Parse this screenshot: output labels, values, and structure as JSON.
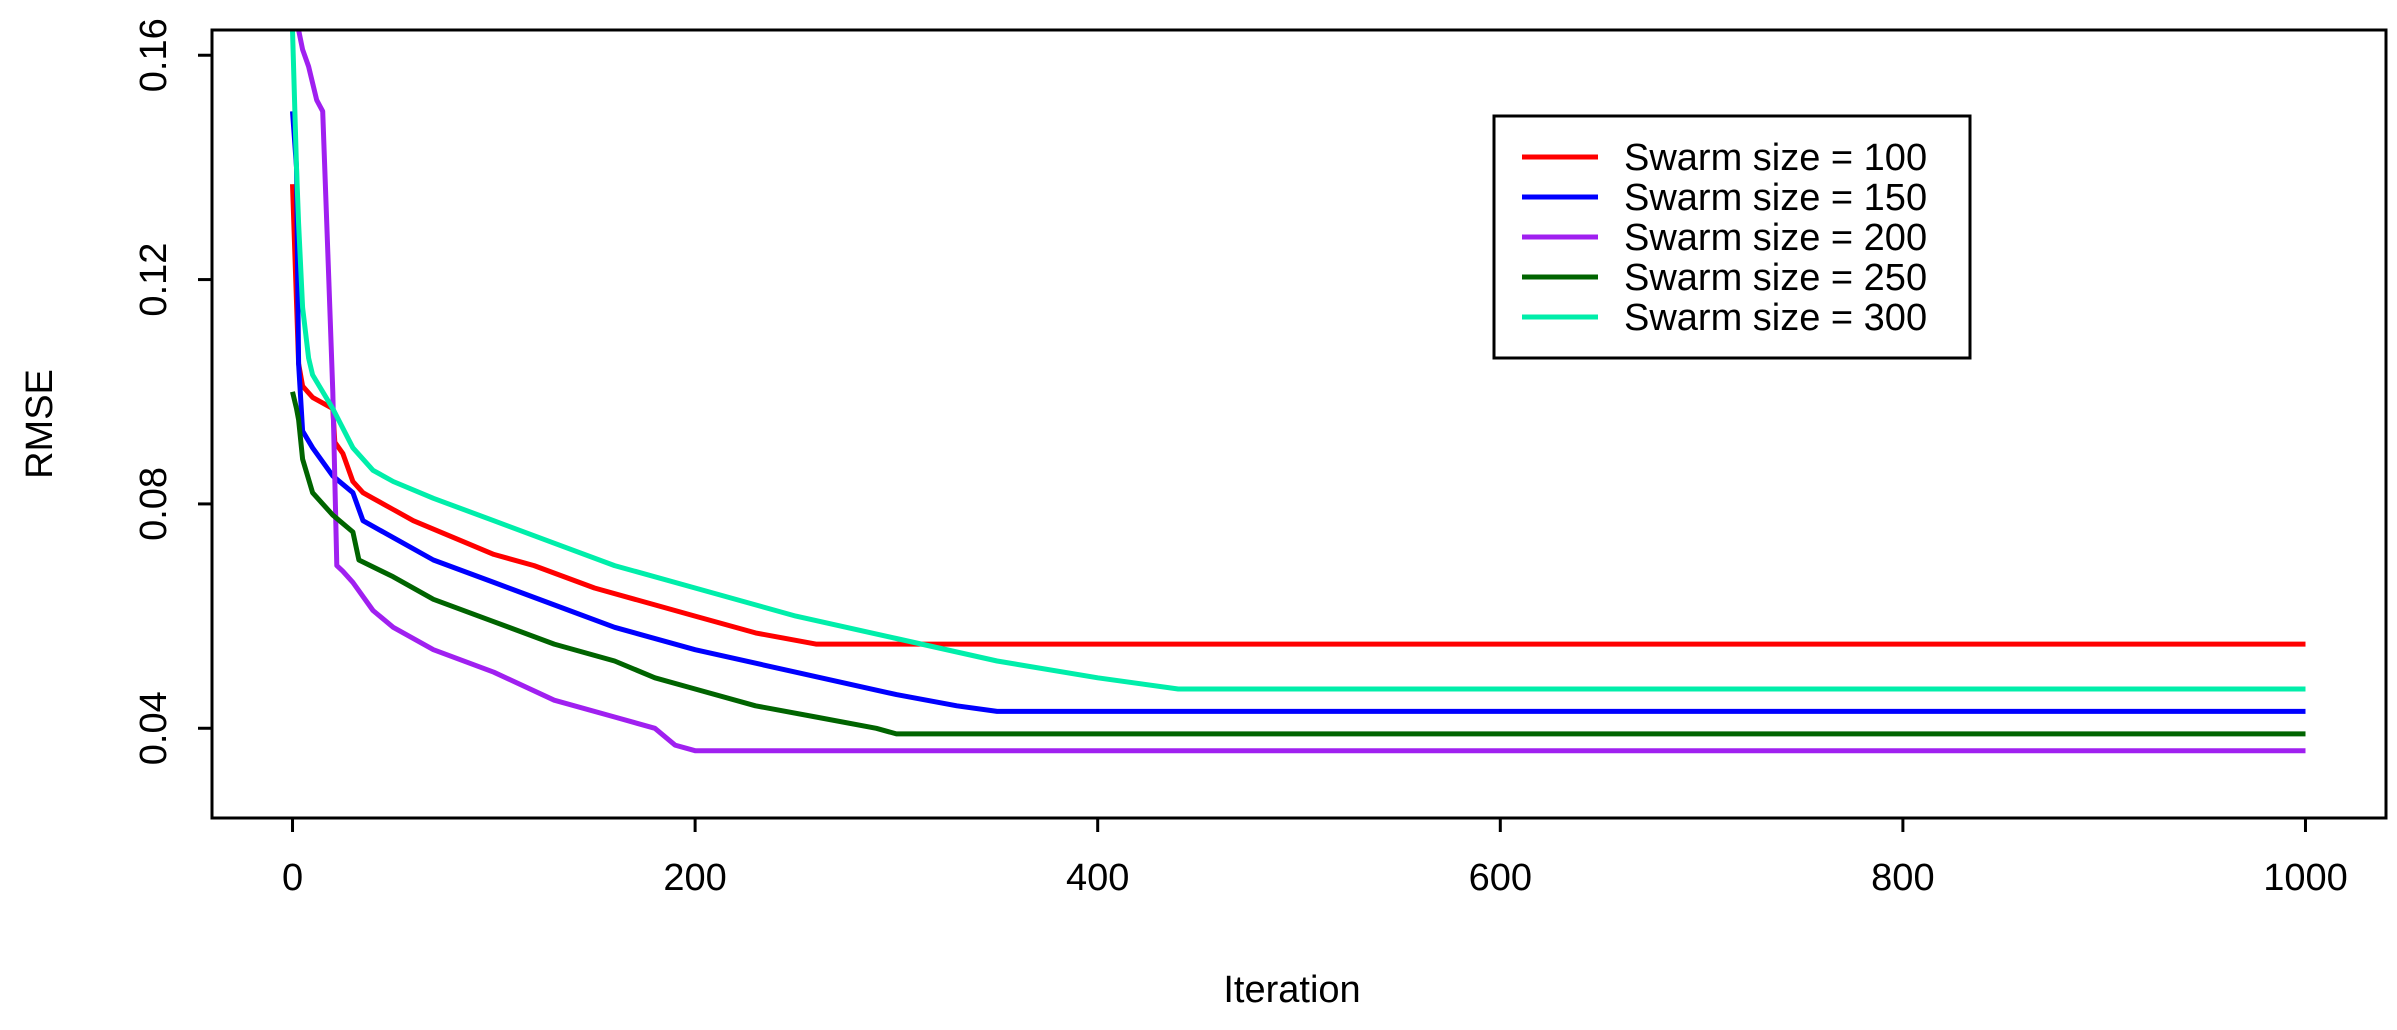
{
  "chart_data": {
    "type": "line",
    "title": "",
    "xlabel": "Iteration",
    "ylabel": "RMSE",
    "xlim": [
      -40,
      1040
    ],
    "ylim": [
      0.024,
      0.1645
    ],
    "xticks": [
      0,
      200,
      400,
      600,
      800,
      1000
    ],
    "xtick_labels": [
      "0",
      "200",
      "400",
      "600",
      "800",
      "1000"
    ],
    "yticks": [
      0.04,
      0.08,
      0.12,
      0.16
    ],
    "ytick_labels": [
      "0.04",
      "0.08",
      "0.12",
      "0.16"
    ],
    "grid": false,
    "legend_position": "top-right",
    "series": [
      {
        "name": "Swarm size = 100",
        "color": "#ff0000",
        "x": [
          0,
          3,
          5,
          10,
          20,
          21,
          25,
          30,
          35,
          40,
          50,
          60,
          80,
          100,
          120,
          150,
          180,
          200,
          230,
          260,
          1000
        ],
        "y": [
          0.137,
          0.105,
          0.101,
          0.099,
          0.097,
          0.091,
          0.089,
          0.084,
          0.082,
          0.081,
          0.079,
          0.077,
          0.074,
          0.071,
          0.069,
          0.065,
          0.062,
          0.06,
          0.057,
          0.055,
          0.055
        ]
      },
      {
        "name": "Swarm size = 150",
        "color": "#0000ff",
        "x": [
          0,
          2,
          3,
          5,
          10,
          20,
          30,
          35,
          50,
          70,
          100,
          130,
          160,
          200,
          250,
          300,
          330,
          350,
          1000
        ],
        "y": [
          0.15,
          0.14,
          0.105,
          0.093,
          0.09,
          0.085,
          0.082,
          0.077,
          0.074,
          0.07,
          0.066,
          0.062,
          0.058,
          0.054,
          0.05,
          0.046,
          0.044,
          0.043,
          0.043
        ]
      },
      {
        "name": "Swarm size = 200",
        "color": "#a020f0",
        "x": [
          3,
          5,
          8,
          12,
          15,
          18,
          20,
          22,
          25,
          30,
          40,
          50,
          70,
          100,
          130,
          160,
          180,
          190,
          200,
          1000
        ],
        "y": [
          0.1645,
          0.161,
          0.158,
          0.152,
          0.15,
          0.12,
          0.1,
          0.069,
          0.068,
          0.066,
          0.061,
          0.058,
          0.054,
          0.05,
          0.045,
          0.042,
          0.04,
          0.037,
          0.036,
          0.036
        ]
      },
      {
        "name": "Swarm size = 250",
        "color": "#006400",
        "x": [
          0,
          2,
          3,
          5,
          10,
          20,
          30,
          33,
          50,
          70,
          100,
          130,
          160,
          180,
          200,
          230,
          260,
          290,
          300,
          1000
        ],
        "y": [
          0.1,
          0.097,
          0.095,
          0.088,
          0.082,
          0.078,
          0.075,
          0.07,
          0.067,
          0.063,
          0.059,
          0.055,
          0.052,
          0.049,
          0.047,
          0.044,
          0.042,
          0.04,
          0.039,
          0.039
        ]
      },
      {
        "name": "Swarm size = 300",
        "color": "#00eeaa",
        "x": [
          0,
          2,
          3,
          5,
          8,
          10,
          20,
          30,
          40,
          50,
          70,
          100,
          130,
          160,
          200,
          250,
          300,
          350,
          400,
          440,
          1000
        ],
        "y": [
          0.1645,
          0.14,
          0.13,
          0.115,
          0.106,
          0.103,
          0.097,
          0.09,
          0.086,
          0.084,
          0.081,
          0.077,
          0.073,
          0.069,
          0.065,
          0.06,
          0.056,
          0.052,
          0.049,
          0.047,
          0.047
        ]
      }
    ]
  }
}
